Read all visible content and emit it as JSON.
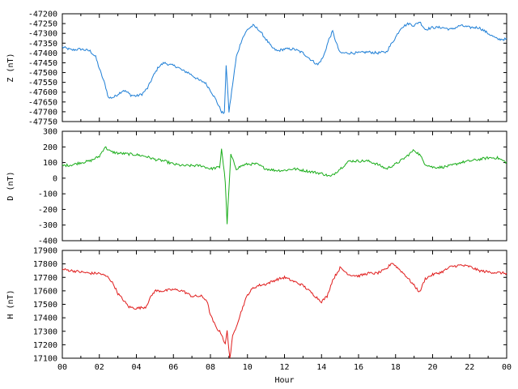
{
  "chart_data": [
    {
      "type": "line",
      "ylabel": "Z (nT)",
      "ylim": [
        -47750,
        -47200
      ],
      "yticks": [
        -47200,
        -47250,
        -47300,
        -47350,
        -47400,
        -47450,
        -47500,
        -47550,
        -47600,
        -47650,
        -47700,
        -47750
      ],
      "xlim": [
        0,
        24
      ],
      "color": "#1f7fd6",
      "points": [
        [
          0,
          -47370
        ],
        [
          0.5,
          -47385
        ],
        [
          1,
          -47380
        ],
        [
          1.5,
          -47390
        ],
        [
          1.8,
          -47420
        ],
        [
          2,
          -47480
        ],
        [
          2.3,
          -47560
        ],
        [
          2.5,
          -47630
        ],
        [
          2.8,
          -47625
        ],
        [
          3,
          -47610
        ],
        [
          3.3,
          -47590
        ],
        [
          3.5,
          -47600
        ],
        [
          3.7,
          -47615
        ],
        [
          4,
          -47620
        ],
        [
          4.3,
          -47610
        ],
        [
          4.6,
          -47580
        ],
        [
          4.9,
          -47520
        ],
        [
          5.2,
          -47470
        ],
        [
          5.5,
          -47450
        ],
        [
          5.8,
          -47460
        ],
        [
          6.2,
          -47470
        ],
        [
          6.5,
          -47490
        ],
        [
          6.8,
          -47500
        ],
        [
          7.1,
          -47520
        ],
        [
          7.4,
          -47540
        ],
        [
          7.7,
          -47550
        ],
        [
          8,
          -47590
        ],
        [
          8.3,
          -47640
        ],
        [
          8.6,
          -47700
        ],
        [
          8.75,
          -47710
        ],
        [
          8.85,
          -47460
        ],
        [
          9,
          -47700
        ],
        [
          9.2,
          -47560
        ],
        [
          9.4,
          -47420
        ],
        [
          9.7,
          -47330
        ],
        [
          10,
          -47280
        ],
        [
          10.3,
          -47260
        ],
        [
          10.6,
          -47280
        ],
        [
          11,
          -47330
        ],
        [
          11.3,
          -47370
        ],
        [
          11.6,
          -47390
        ],
        [
          12,
          -47380
        ],
        [
          12.5,
          -47380
        ],
        [
          13,
          -47400
        ],
        [
          13.5,
          -47440
        ],
        [
          13.8,
          -47460
        ],
        [
          14.1,
          -47420
        ],
        [
          14.4,
          -47330
        ],
        [
          14.6,
          -47290
        ],
        [
          14.8,
          -47350
        ],
        [
          15,
          -47400
        ],
        [
          15.5,
          -47400
        ],
        [
          16,
          -47400
        ],
        [
          16.5,
          -47395
        ],
        [
          17,
          -47400
        ],
        [
          17.5,
          -47395
        ],
        [
          18,
          -47320
        ],
        [
          18.3,
          -47270
        ],
        [
          18.7,
          -47250
        ],
        [
          19,
          -47260
        ],
        [
          19.3,
          -47240
        ],
        [
          19.6,
          -47280
        ],
        [
          20,
          -47270
        ],
        [
          20.5,
          -47270
        ],
        [
          21,
          -47280
        ],
        [
          21.5,
          -47260
        ],
        [
          22,
          -47270
        ],
        [
          22.5,
          -47270
        ],
        [
          23,
          -47300
        ],
        [
          23.5,
          -47330
        ],
        [
          24,
          -47330
        ]
      ]
    },
    {
      "type": "line",
      "ylabel": "D (nT)",
      "ylim": [
        -400,
        300
      ],
      "yticks": [
        300,
        200,
        100,
        0,
        -100,
        -200,
        -300,
        -400
      ],
      "xlim": [
        0,
        24
      ],
      "color": "#1aad1a",
      "points": [
        [
          0,
          80
        ],
        [
          0.5,
          85
        ],
        [
          1,
          100
        ],
        [
          1.5,
          110
        ],
        [
          2,
          140
        ],
        [
          2.3,
          200
        ],
        [
          2.6,
          170
        ],
        [
          3,
          160
        ],
        [
          3.5,
          155
        ],
        [
          4,
          150
        ],
        [
          4.5,
          140
        ],
        [
          5,
          120
        ],
        [
          5.5,
          110
        ],
        [
          6,
          90
        ],
        [
          6.5,
          80
        ],
        [
          7,
          80
        ],
        [
          7.5,
          80
        ],
        [
          8,
          60
        ],
        [
          8.5,
          70
        ],
        [
          8.6,
          190
        ],
        [
          8.8,
          -20
        ],
        [
          8.9,
          -290
        ],
        [
          9.1,
          150
        ],
        [
          9.4,
          60
        ],
        [
          9.7,
          80
        ],
        [
          10,
          90
        ],
        [
          10.5,
          90
        ],
        [
          11,
          60
        ],
        [
          11.5,
          50
        ],
        [
          12,
          50
        ],
        [
          12.5,
          60
        ],
        [
          13,
          50
        ],
        [
          13.5,
          40
        ],
        [
          14,
          30
        ],
        [
          14.5,
          10
        ],
        [
          15,
          60
        ],
        [
          15.5,
          110
        ],
        [
          16,
          110
        ],
        [
          16.5,
          110
        ],
        [
          17,
          90
        ],
        [
          17.5,
          60
        ],
        [
          18,
          90
        ],
        [
          18.5,
          130
        ],
        [
          19,
          180
        ],
        [
          19.3,
          150
        ],
        [
          19.6,
          90
        ],
        [
          20,
          70
        ],
        [
          20.5,
          70
        ],
        [
          21,
          80
        ],
        [
          21.5,
          100
        ],
        [
          22,
          110
        ],
        [
          22.5,
          120
        ],
        [
          23,
          130
        ],
        [
          23.5,
          130
        ],
        [
          24,
          100
        ]
      ]
    },
    {
      "type": "line",
      "ylabel": "H (nT)",
      "xlabel": "Hour",
      "ylim": [
        17100,
        17900
      ],
      "yticks": [
        17900,
        17800,
        17700,
        17600,
        17500,
        17400,
        17300,
        17200,
        17100
      ],
      "xlim": [
        0,
        24
      ],
      "xticks": [
        "00",
        "02",
        "04",
        "06",
        "08",
        "10",
        "12",
        "14",
        "16",
        "18",
        "20",
        "22",
        "00"
      ],
      "color": "#e01c1c",
      "points": [
        [
          0,
          17760
        ],
        [
          0.5,
          17750
        ],
        [
          1,
          17740
        ],
        [
          1.5,
          17730
        ],
        [
          2,
          17730
        ],
        [
          2.5,
          17700
        ],
        [
          2.8,
          17640
        ],
        [
          3,
          17580
        ],
        [
          3.3,
          17530
        ],
        [
          3.6,
          17480
        ],
        [
          4,
          17470
        ],
        [
          4.5,
          17480
        ],
        [
          4.8,
          17560
        ],
        [
          5,
          17600
        ],
        [
          5.5,
          17600
        ],
        [
          6,
          17610
        ],
        [
          6.5,
          17600
        ],
        [
          7,
          17560
        ],
        [
          7.5,
          17560
        ],
        [
          7.8,
          17530
        ],
        [
          8,
          17420
        ],
        [
          8.3,
          17330
        ],
        [
          8.6,
          17280
        ],
        [
          8.8,
          17200
        ],
        [
          8.9,
          17300
        ],
        [
          9.05,
          17100
        ],
        [
          9.2,
          17260
        ],
        [
          9.5,
          17380
        ],
        [
          9.8,
          17500
        ],
        [
          10,
          17570
        ],
        [
          10.3,
          17620
        ],
        [
          10.6,
          17640
        ],
        [
          11,
          17650
        ],
        [
          11.5,
          17680
        ],
        [
          12,
          17700
        ],
        [
          12.5,
          17670
        ],
        [
          13,
          17640
        ],
        [
          13.5,
          17580
        ],
        [
          14,
          17520
        ],
        [
          14.3,
          17560
        ],
        [
          14.6,
          17680
        ],
        [
          15,
          17770
        ],
        [
          15.5,
          17720
        ],
        [
          16,
          17710
        ],
        [
          16.5,
          17730
        ],
        [
          17,
          17730
        ],
        [
          17.5,
          17760
        ],
        [
          17.8,
          17810
        ],
        [
          18.2,
          17760
        ],
        [
          18.5,
          17720
        ],
        [
          19,
          17640
        ],
        [
          19.3,
          17590
        ],
        [
          19.6,
          17690
        ],
        [
          20,
          17720
        ],
        [
          20.5,
          17740
        ],
        [
          21,
          17780
        ],
        [
          21.5,
          17790
        ],
        [
          22,
          17780
        ],
        [
          22.5,
          17750
        ],
        [
          23,
          17740
        ],
        [
          24,
          17730
        ]
      ]
    }
  ]
}
